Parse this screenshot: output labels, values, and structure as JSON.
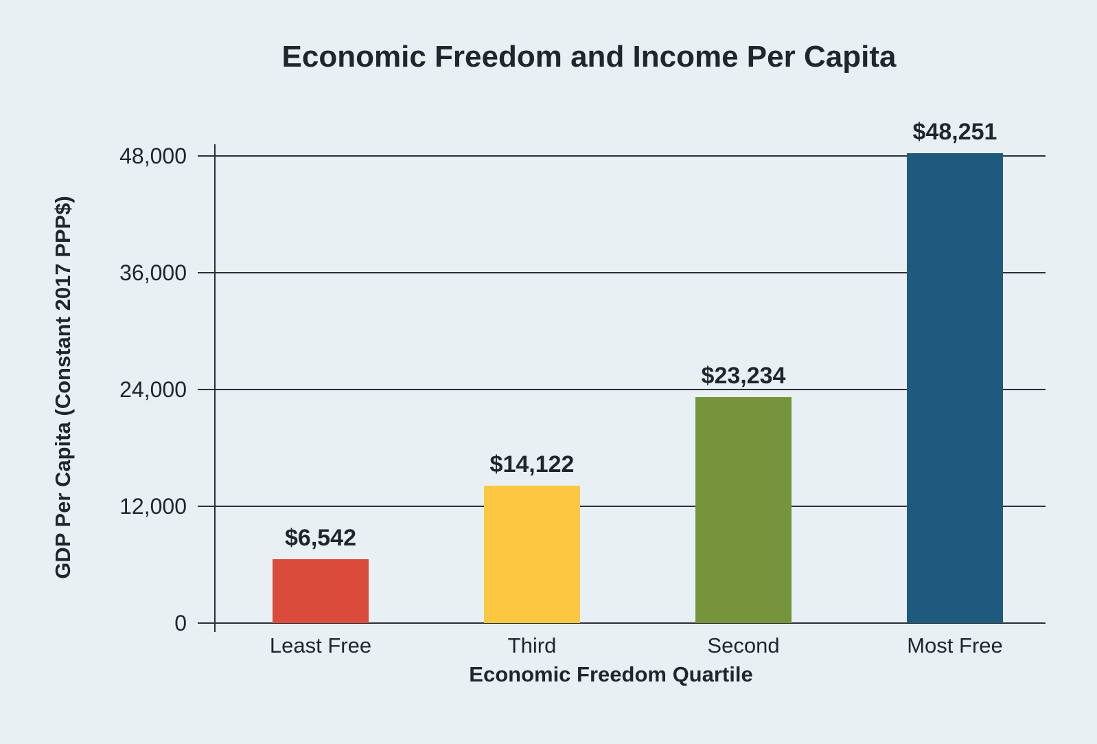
{
  "title": "Economic Freedom and Income Per Capita",
  "chart_data": {
    "type": "bar",
    "title": "Economic Freedom and Income Per Capita",
    "xlabel": "Economic Freedom Quartile",
    "ylabel": "GDP Per Capita (Constant 2017 PPP$)",
    "categories": [
      "Least Free",
      "Third",
      "Second",
      "Most Free"
    ],
    "values": [
      6542,
      14122,
      23234,
      48251
    ],
    "value_labels": [
      "$6,542",
      "$14,122",
      "$23,234",
      "$48,251"
    ],
    "bar_colors": [
      "#d94b3a",
      "#fcc842",
      "#75943b",
      "#1e5a7c"
    ],
    "ylim": [
      0,
      48000
    ],
    "yticks": [
      0,
      12000,
      24000,
      36000,
      48000
    ],
    "ytick_labels": [
      "0",
      "12,000",
      "24,000",
      "36,000",
      "48,000"
    ],
    "grid": true,
    "legend": "none"
  },
  "colors": {
    "background": "#e9f0f4",
    "text": "#21262d",
    "axis": "#2b2f36",
    "gridline": "#2b2f36"
  }
}
